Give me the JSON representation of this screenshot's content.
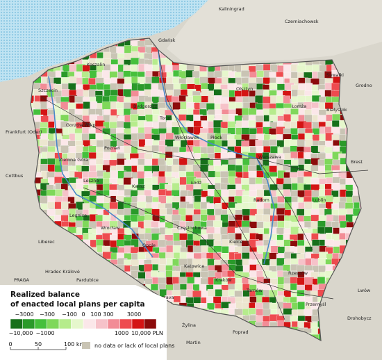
{
  "legend": {
    "title_line1": "Realized balance",
    "title_line2": "of enacted local plans per capita",
    "colors": [
      "#17701a",
      "#2a9a2a",
      "#45c03c",
      "#7fd85a",
      "#b6ec8c",
      "#e6f7cc",
      "#fbe7e9",
      "#f6c2c9",
      "#f28c96",
      "#ee4b4f",
      "#d41414",
      "#8c0b0b"
    ],
    "upper_labels": [
      "−3000",
      "−300",
      "−100",
      "0",
      "100",
      "300",
      "3000"
    ],
    "lower_labels": [
      "−10,000",
      "−1000",
      "1000",
      "10,000 PLN"
    ],
    "no_data_label": "no data or lack of local plans",
    "no_data_color": "#c9c4b4"
  },
  "scale_bar": {
    "labels": [
      "0",
      "50",
      "100 km"
    ]
  },
  "places": [
    "Kaliningrad",
    "Czerniachowsk",
    "Gdańsk",
    "Koszalin",
    "Olsztyn",
    "Suwałki",
    "Bydgoszcz",
    "Toruń",
    "Łomża",
    "Białystok",
    "Szczecin",
    "Gorzów Wlkp.",
    "Poznań",
    "Włocławek",
    "Płock",
    "Warszawa",
    "Frankfurt (Oder)",
    "Zielona Góra",
    "Leszno",
    "Kalisz",
    "Łódź",
    "Radom",
    "Lublin",
    "Brest",
    "Legnica",
    "Wrocław",
    "Opole",
    "Częstochowa",
    "Kielce",
    "Katowice",
    "Kraków",
    "Tarnów",
    "Rzeszów",
    "Przemyśl",
    "Liberec",
    "Hradec Králové",
    "Pardubice",
    "PRAGA",
    "Ostrava",
    "Żylina",
    "Poprad",
    "Martin",
    "Drohobycz",
    "Lwów",
    "Grodno",
    "Cottbus"
  ]
}
